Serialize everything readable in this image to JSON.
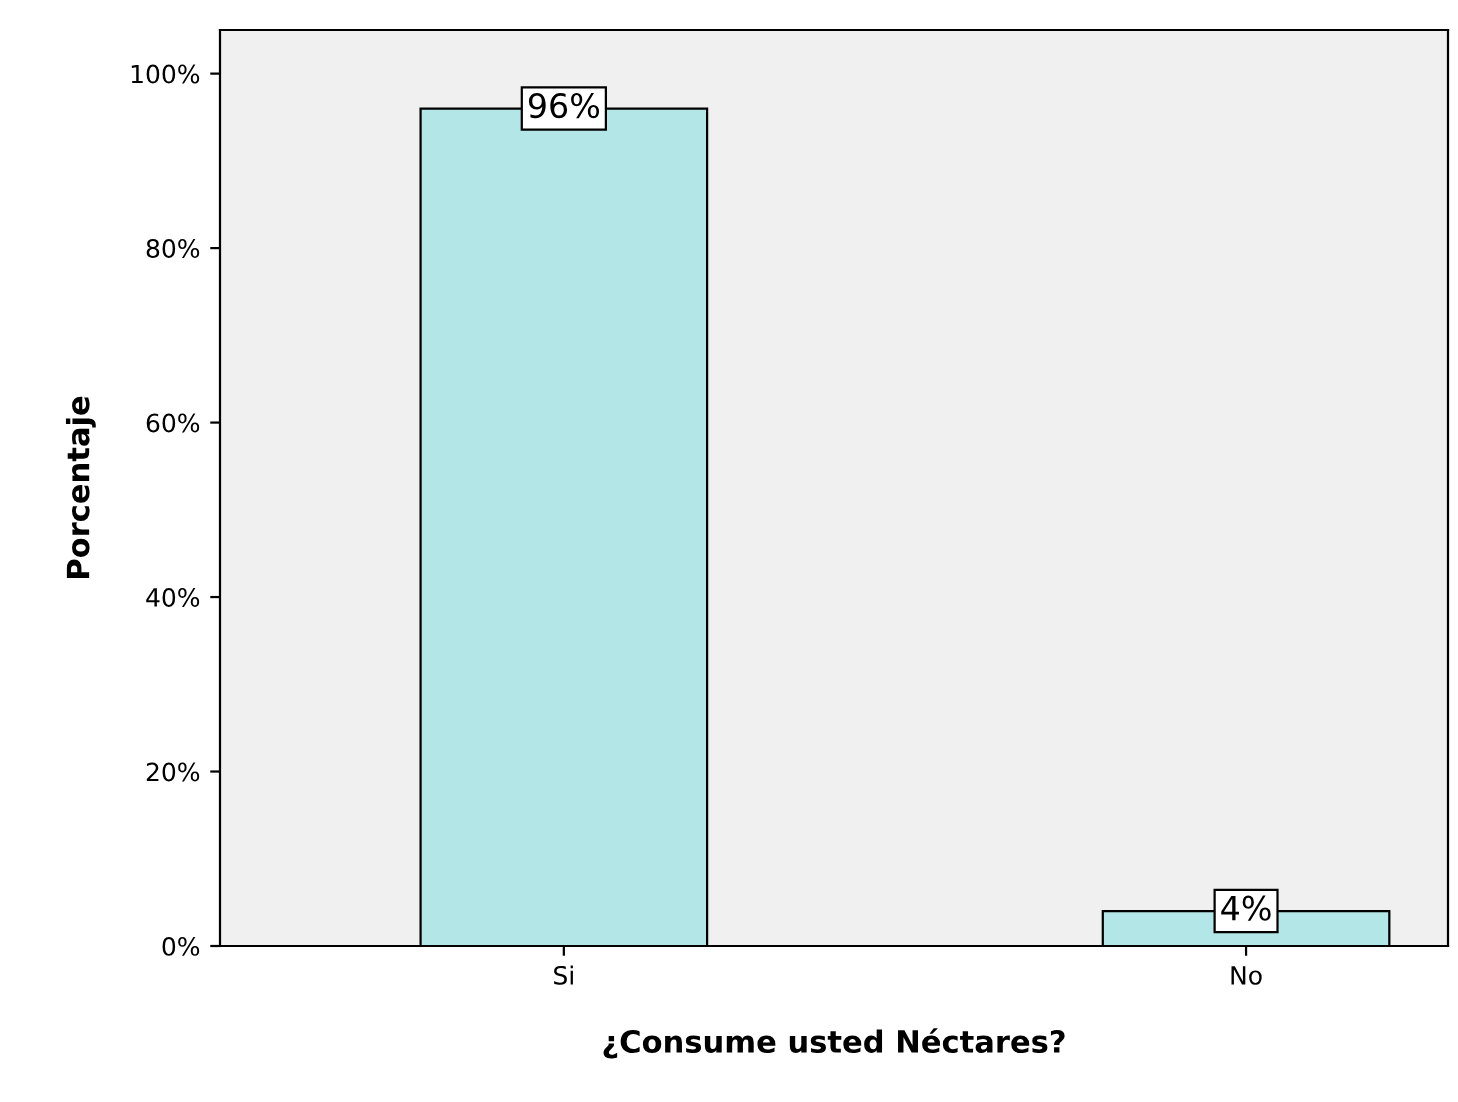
{
  "chart_data": {
    "type": "bar",
    "xlabel": "¿Consume usted Néctares?",
    "ylabel": "Porcentaje",
    "categories": [
      "Si",
      "No"
    ],
    "values": [
      96,
      4
    ],
    "value_labels": [
      "96%",
      "4%"
    ],
    "color": "#b3e6e6",
    "ylim": [
      0,
      105
    ],
    "yticks": [
      {
        "value": 0,
        "label": "0%"
      },
      {
        "value": 20,
        "label": "20%"
      },
      {
        "value": 40,
        "label": "40%"
      },
      {
        "value": 60,
        "label": "60%"
      },
      {
        "value": 80,
        "label": "80%"
      },
      {
        "value": 100,
        "label": "100%"
      }
    ],
    "grid": false
  }
}
